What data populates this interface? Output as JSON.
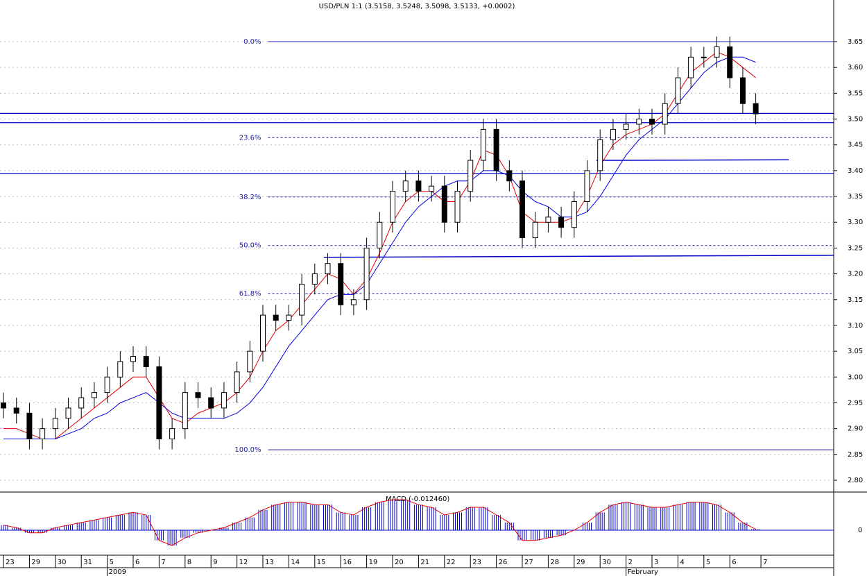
{
  "chart_data": {
    "type": "candlestick",
    "title": "USD/PLN 1:1 (3.5158, 3.5248, 3.5098, 3.5133, +0.0002)",
    "xlim": [
      -0.134,
      32.005
    ],
    "xticks": [
      {
        "value": 0,
        "label": "23"
      },
      {
        "value": 1,
        "label": "29"
      },
      {
        "value": 2,
        "label": "30"
      },
      {
        "value": 3,
        "label": "31"
      },
      {
        "value": 4,
        "label": "5"
      },
      {
        "value": 5,
        "label": "6"
      },
      {
        "value": 6,
        "label": "7"
      },
      {
        "value": 7,
        "label": "8"
      },
      {
        "value": 8,
        "label": "9"
      },
      {
        "value": 9,
        "label": "12"
      },
      {
        "value": 10,
        "label": "13"
      },
      {
        "value": 11,
        "label": "14"
      },
      {
        "value": 12,
        "label": "15"
      },
      {
        "value": 13,
        "label": "16"
      },
      {
        "value": 14,
        "label": "19"
      },
      {
        "value": 15,
        "label": "20"
      },
      {
        "value": 16,
        "label": "21"
      },
      {
        "value": 17,
        "label": "22"
      },
      {
        "value": 18,
        "label": "23"
      },
      {
        "value": 19,
        "label": "26"
      },
      {
        "value": 20,
        "label": "27"
      },
      {
        "value": 21,
        "label": "28"
      },
      {
        "value": 22,
        "label": "29"
      },
      {
        "value": 23,
        "label": "30"
      },
      {
        "value": 24,
        "label": "2"
      },
      {
        "value": 25,
        "label": "3"
      },
      {
        "value": 26,
        "label": "4"
      },
      {
        "value": 27,
        "label": "5"
      },
      {
        "value": 28,
        "label": "6"
      },
      {
        "value": 29.2,
        "label": "7"
      }
    ],
    "x_period_labels": [
      {
        "value": 4,
        "label": "2009"
      },
      {
        "value": 24,
        "label": "February"
      }
    ],
    "ylim": [
      2.7785,
      3.7307
    ],
    "yticks": [
      {
        "value": 2.8,
        "label": "2.80"
      },
      {
        "value": 2.85,
        "label": "2.85"
      },
      {
        "value": 2.9,
        "label": "2.90"
      },
      {
        "value": 2.95,
        "label": "2.95"
      },
      {
        "value": 3.0,
        "label": "3.00"
      },
      {
        "value": 3.05,
        "label": "3.05"
      },
      {
        "value": 3.1,
        "label": "3.10"
      },
      {
        "value": 3.15,
        "label": "3.15"
      },
      {
        "value": 3.2,
        "label": "3.20"
      },
      {
        "value": 3.25,
        "label": "3.25"
      },
      {
        "value": 3.3,
        "label": "3.30"
      },
      {
        "value": 3.35,
        "label": "3.35"
      },
      {
        "value": 3.4,
        "label": "3.40"
      },
      {
        "value": 3.45,
        "label": "3.45"
      },
      {
        "value": 3.5,
        "label": "3.50"
      },
      {
        "value": 3.55,
        "label": "3.55"
      },
      {
        "value": 3.6,
        "label": "3.60"
      },
      {
        "value": 3.65,
        "label": "3.65"
      }
    ],
    "grid": true,
    "x": [
      0,
      0.5,
      1,
      1.5,
      2,
      2.5,
      3,
      3.5,
      4,
      4.5,
      5,
      5.5,
      6,
      6.5,
      7,
      7.5,
      8,
      8.5,
      9,
      9.5,
      10,
      10.5,
      11,
      11.5,
      12,
      12.5,
      13,
      13.5,
      14,
      14.5,
      15,
      15.5,
      16,
      16.5,
      17,
      17.5,
      18,
      18.5,
      19,
      19.5,
      20,
      20.5,
      21,
      21.5,
      22,
      22.5,
      23,
      23.5,
      24,
      24.5,
      25,
      25.5,
      26,
      26.5,
      27,
      27.5,
      28,
      28.5,
      29
    ],
    "open": [
      2.95,
      2.94,
      2.93,
      2.88,
      2.9,
      2.92,
      2.94,
      2.96,
      2.97,
      3.0,
      3.03,
      3.04,
      3.02,
      2.88,
      2.9,
      2.97,
      2.96,
      2.94,
      2.97,
      3.01,
      3.05,
      3.12,
      3.11,
      3.12,
      3.18,
      3.2,
      3.22,
      3.14,
      3.15,
      3.25,
      3.3,
      3.36,
      3.38,
      3.36,
      3.37,
      3.3,
      3.36,
      3.42,
      3.48,
      3.4,
      3.38,
      3.27,
      3.3,
      3.31,
      3.29,
      3.34,
      3.4,
      3.46,
      3.48,
      3.49,
      3.5,
      3.49,
      3.53,
      3.58,
      3.62,
      3.62,
      3.64,
      3.58,
      3.53
    ],
    "high": [
      2.97,
      2.96,
      2.95,
      2.92,
      2.94,
      2.96,
      2.98,
      2.99,
      3.02,
      3.05,
      3.06,
      3.06,
      3.04,
      2.92,
      2.99,
      2.99,
      2.98,
      2.99,
      3.03,
      3.07,
      3.14,
      3.14,
      3.14,
      3.2,
      3.22,
      3.24,
      3.24,
      3.17,
      3.27,
      3.32,
      3.38,
      3.4,
      3.4,
      3.39,
      3.39,
      3.38,
      3.44,
      3.5,
      3.5,
      3.42,
      3.4,
      3.32,
      3.33,
      3.33,
      3.36,
      3.42,
      3.48,
      3.5,
      3.51,
      3.52,
      3.52,
      3.55,
      3.6,
      3.64,
      3.64,
      3.66,
      3.66,
      3.6,
      3.55
    ],
    "low": [
      2.92,
      2.91,
      2.86,
      2.86,
      2.88,
      2.9,
      2.92,
      2.94,
      2.95,
      2.98,
      3.01,
      3.0,
      2.86,
      2.86,
      2.88,
      2.94,
      2.92,
      2.92,
      2.95,
      2.99,
      3.03,
      3.09,
      3.09,
      3.1,
      3.16,
      3.18,
      3.12,
      3.12,
      3.13,
      3.23,
      3.28,
      3.34,
      3.34,
      3.34,
      3.28,
      3.28,
      3.34,
      3.4,
      3.38,
      3.36,
      3.25,
      3.25,
      3.28,
      3.27,
      3.27,
      3.32,
      3.38,
      3.44,
      3.46,
      3.47,
      3.47,
      3.47,
      3.51,
      3.56,
      3.6,
      3.6,
      3.56,
      3.51,
      3.49
    ],
    "close": [
      2.94,
      2.93,
      2.88,
      2.9,
      2.92,
      2.94,
      2.96,
      2.97,
      3.0,
      3.03,
      3.04,
      3.02,
      2.88,
      2.9,
      2.97,
      2.96,
      2.94,
      2.97,
      3.01,
      3.05,
      3.12,
      3.11,
      3.12,
      3.18,
      3.2,
      3.22,
      3.14,
      3.15,
      3.25,
      3.3,
      3.36,
      3.38,
      3.36,
      3.37,
      3.3,
      3.36,
      3.42,
      3.48,
      3.4,
      3.38,
      3.27,
      3.3,
      3.31,
      3.29,
      3.34,
      3.4,
      3.46,
      3.48,
      3.49,
      3.5,
      3.49,
      3.53,
      3.58,
      3.62,
      3.62,
      3.64,
      3.58,
      3.53,
      3.51
    ],
    "series": [
      {
        "color": "#e00000",
        "values": [
          2.9,
          2.9,
          2.89,
          2.88,
          2.88,
          2.9,
          2.92,
          2.94,
          2.96,
          2.98,
          3.0,
          3.0,
          2.96,
          2.92,
          2.91,
          2.93,
          2.94,
          2.95,
          2.97,
          3.0,
          3.05,
          3.09,
          3.11,
          3.14,
          3.17,
          3.2,
          3.19,
          3.16,
          3.19,
          3.24,
          3.3,
          3.34,
          3.36,
          3.36,
          3.34,
          3.34,
          3.38,
          3.44,
          3.43,
          3.39,
          3.32,
          3.3,
          3.3,
          3.3,
          3.31,
          3.35,
          3.41,
          3.45,
          3.47,
          3.48,
          3.49,
          3.51,
          3.55,
          3.59,
          3.61,
          3.63,
          3.62,
          3.6,
          3.58
        ]
      },
      {
        "color": "#0000e0",
        "values": [
          2.88,
          2.88,
          2.88,
          2.88,
          2.88,
          2.89,
          2.9,
          2.92,
          2.93,
          2.95,
          2.96,
          2.97,
          2.95,
          2.93,
          2.92,
          2.92,
          2.92,
          2.92,
          2.93,
          2.95,
          2.98,
          3.02,
          3.06,
          3.09,
          3.12,
          3.15,
          3.16,
          3.16,
          3.18,
          3.22,
          3.26,
          3.3,
          3.33,
          3.35,
          3.37,
          3.38,
          3.38,
          3.4,
          3.4,
          3.39,
          3.36,
          3.34,
          3.33,
          3.31,
          3.31,
          3.32,
          3.35,
          3.39,
          3.43,
          3.46,
          3.48,
          3.5,
          3.53,
          3.56,
          3.59,
          3.61,
          3.62,
          3.62,
          3.61
        ]
      }
    ],
    "fibonacci": {
      "x_start": 10.2,
      "color": "#1c1ca8",
      "levels": [
        {
          "label": "0.0%",
          "value": 3.65
        },
        {
          "label": "23.6%",
          "value": 3.464
        },
        {
          "label": "38.2%",
          "value": 3.349
        },
        {
          "label": "50.0%",
          "value": 3.255
        },
        {
          "label": "61.8%",
          "value": 3.162
        },
        {
          "label": "100.0%",
          "value": 2.859
        }
      ]
    },
    "horizontal_lines": [
      3.511,
      3.493,
      3.394
    ],
    "trendlines": [
      {
        "x": [
          12.35,
          32.0
        ],
        "y": [
          3.232,
          3.236
        ]
      },
      {
        "x": [
          22.86,
          30.27
        ],
        "y": [
          3.42,
          3.421
        ]
      }
    ],
    "macd": {
      "label": "MACD (-0.012460)",
      "ylim": [
        -0.049,
        0.0736
      ],
      "yticks": [
        0
      ],
      "color": "#0000c8",
      "line_color": "#e00000",
      "values": [
        0.01,
        0.005,
        -0.005,
        -0.005,
        0.005,
        0.01,
        0.015,
        0.02,
        0.025,
        0.03,
        0.035,
        0.03,
        -0.02,
        -0.03,
        -0.015,
        -0.005,
        0,
        0.005,
        0.015,
        0.025,
        0.04,
        0.05,
        0.055,
        0.055,
        0.05,
        0.05,
        0.035,
        0.03,
        0.045,
        0.055,
        0.06,
        0.06,
        0.05,
        0.045,
        0.03,
        0.035,
        0.045,
        0.045,
        0.03,
        0.015,
        -0.02,
        -0.02,
        -0.015,
        -0.01,
        0,
        0.015,
        0.035,
        0.05,
        0.055,
        0.05,
        0.045,
        0.045,
        0.05,
        0.055,
        0.055,
        0.05,
        0.035,
        0.015,
        0.002
      ]
    }
  }
}
